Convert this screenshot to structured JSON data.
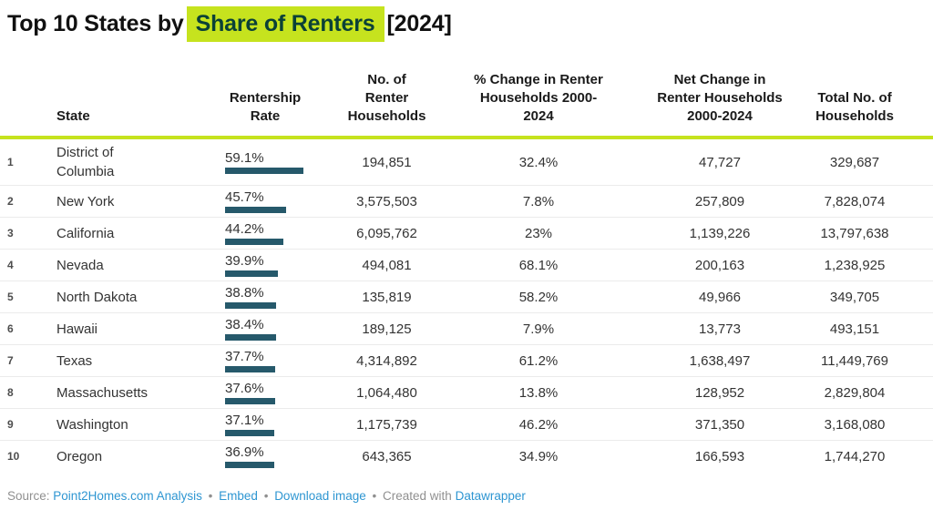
{
  "title": {
    "prefix": "Top 10 States by",
    "highlight": "Share of Renters",
    "suffix": "[2024]"
  },
  "colors": {
    "accent_green": "#c6e31e",
    "highlight_text": "#0b4137",
    "bar": "#26596b",
    "link_blue": "#2e96d2"
  },
  "chart_data": {
    "type": "table",
    "title": "Top 10 States by Share of Renters [2024]",
    "bar_axis_max": 59.1,
    "columns": [
      {
        "key": "rank",
        "label": ""
      },
      {
        "key": "state",
        "label": "State"
      },
      {
        "key": "rate",
        "label": "Rentership Rate"
      },
      {
        "key": "renters",
        "label": "No. of Renter Households"
      },
      {
        "key": "pct_change",
        "label": "% Change in Renter Households 2000-2024"
      },
      {
        "key": "net_change",
        "label": "Net Change in Renter Households 2000-2024"
      },
      {
        "key": "total",
        "label": "Total No. of Households"
      }
    ],
    "rows": [
      {
        "rank": "1",
        "state": "District of Columbia",
        "rate": "59.1%",
        "rate_value": 59.1,
        "renters": "194,851",
        "pct_change": "32.4%",
        "net_change": "47,727",
        "total": "329,687"
      },
      {
        "rank": "2",
        "state": "New York",
        "rate": "45.7%",
        "rate_value": 45.7,
        "renters": "3,575,503",
        "pct_change": "7.8%",
        "net_change": "257,809",
        "total": "7,828,074"
      },
      {
        "rank": "3",
        "state": "California",
        "rate": "44.2%",
        "rate_value": 44.2,
        "renters": "6,095,762",
        "pct_change": "23%",
        "net_change": "1,139,226",
        "total": "13,797,638"
      },
      {
        "rank": "4",
        "state": "Nevada",
        "rate": "39.9%",
        "rate_value": 39.9,
        "renters": "494,081",
        "pct_change": "68.1%",
        "net_change": "200,163",
        "total": "1,238,925"
      },
      {
        "rank": "5",
        "state": "North Dakota",
        "rate": "38.8%",
        "rate_value": 38.8,
        "renters": "135,819",
        "pct_change": "58.2%",
        "net_change": "49,966",
        "total": "349,705"
      },
      {
        "rank": "6",
        "state": "Hawaii",
        "rate": "38.4%",
        "rate_value": 38.4,
        "renters": "189,125",
        "pct_change": "7.9%",
        "net_change": "13,773",
        "total": "493,151"
      },
      {
        "rank": "7",
        "state": "Texas",
        "rate": "37.7%",
        "rate_value": 37.7,
        "renters": "4,314,892",
        "pct_change": "61.2%",
        "net_change": "1,638,497",
        "total": "11,449,769"
      },
      {
        "rank": "8",
        "state": "Massachusetts",
        "rate": "37.6%",
        "rate_value": 37.6,
        "renters": "1,064,480",
        "pct_change": "13.8%",
        "net_change": "128,952",
        "total": "2,829,804"
      },
      {
        "rank": "9",
        "state": "Washington",
        "rate": "37.1%",
        "rate_value": 37.1,
        "renters": "1,175,739",
        "pct_change": "46.2%",
        "net_change": "371,350",
        "total": "3,168,080"
      },
      {
        "rank": "10",
        "state": "Oregon",
        "rate": "36.9%",
        "rate_value": 36.9,
        "renters": "643,365",
        "pct_change": "34.9%",
        "net_change": "166,593",
        "total": "1,744,270"
      }
    ]
  },
  "footer": {
    "source_label": "Source:",
    "source_link": "Point2Homes.com Analysis",
    "bullet": "•",
    "embed": "Embed",
    "download": "Download image",
    "created_with": "Created with",
    "datawrapper": "Datawrapper"
  }
}
